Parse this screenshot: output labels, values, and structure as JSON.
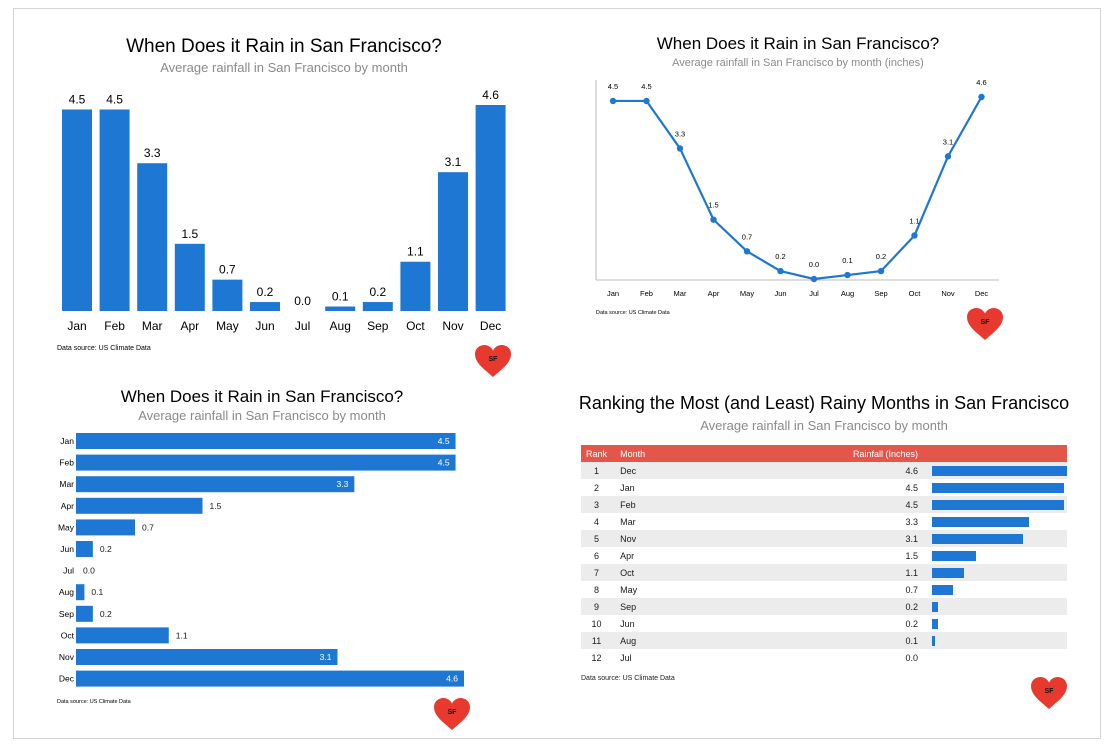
{
  "colors": {
    "bar": "#1f77d4",
    "header": "#e5564a",
    "heart": "#e8392e",
    "subtitle": "#8a8a8a"
  },
  "panels": {
    "p1": {
      "title": "When Does it Rain in San Francisco?",
      "subtitle": "Average rainfall in San Francisco by month",
      "source": "Data source: US Climate Data"
    },
    "p2": {
      "title": "When Does it Rain in San Francisco?",
      "subtitle": "Average rainfall in San Francisco by month (inches)",
      "source": "Data source: US Climate Data"
    },
    "p3": {
      "title": "When Does it Rain in San Francisco?",
      "subtitle": "Average rainfall in San Francisco by month",
      "source": "Data source: US Climate Data"
    },
    "p4": {
      "title": "Ranking the Most (and Least) Rainy Months in San Francisco",
      "subtitle": "Average rainfall in San Francisco by month",
      "headers": {
        "rank": "Rank",
        "month": "Month",
        "value": "Rainfall (Inches)"
      },
      "source": "Data source: US Climate Data"
    }
  },
  "logo": {
    "text": "SF",
    "icon": "heart-icon"
  },
  "chart_data": [
    {
      "type": "bar",
      "categories": [
        "Jan",
        "Feb",
        "Mar",
        "Apr",
        "May",
        "Jun",
        "Jul",
        "Aug",
        "Sep",
        "Oct",
        "Nov",
        "Dec"
      ],
      "values": [
        4.5,
        4.5,
        3.3,
        1.5,
        0.7,
        0.2,
        0.0,
        0.1,
        0.2,
        1.1,
        3.1,
        4.6
      ],
      "labels": [
        "4.5",
        "4.5",
        "3.3",
        "1.5",
        "0.7",
        "0.2",
        "0.0",
        "0.1",
        "0.2",
        "1.1",
        "3.1",
        "4.6"
      ],
      "title": "When Does it Rain in San Francisco?",
      "subtitle": "Average rainfall in San Francisco by month",
      "ylim": [
        0,
        4.6
      ],
      "grid": false
    },
    {
      "type": "line",
      "categories": [
        "Jan",
        "Feb",
        "Mar",
        "Apr",
        "May",
        "Jun",
        "Jul",
        "Aug",
        "Sep",
        "Oct",
        "Nov",
        "Dec"
      ],
      "values": [
        4.5,
        4.5,
        3.3,
        1.5,
        0.7,
        0.2,
        0.0,
        0.1,
        0.2,
        1.1,
        3.1,
        4.6
      ],
      "labels": [
        "4.5",
        "4.5",
        "3.3",
        "1.5",
        "0.7",
        "0.2",
        "0.0",
        "0.1",
        "0.2",
        "1.1",
        "3.1",
        "4.6"
      ],
      "title": "When Does it Rain in San Francisco?",
      "subtitle": "Average rainfall in San Francisco by month (inches)",
      "ylim": [
        0,
        4.6
      ],
      "grid": false
    },
    {
      "type": "bar",
      "orientation": "horizontal",
      "categories": [
        "Jan",
        "Feb",
        "Mar",
        "Apr",
        "May",
        "Jun",
        "Jul",
        "Aug",
        "Sep",
        "Oct",
        "Nov",
        "Dec"
      ],
      "values": [
        4.5,
        4.5,
        3.3,
        1.5,
        0.7,
        0.2,
        0.0,
        0.1,
        0.2,
        1.1,
        3.1,
        4.6
      ],
      "labels": [
        "4.5",
        "4.5",
        "3.3",
        "1.5",
        "0.7",
        "0.2",
        "0.0",
        "0.1",
        "0.2",
        "1.1",
        "3.1",
        "4.6"
      ],
      "title": "When Does it Rain in San Francisco?",
      "subtitle": "Average rainfall in San Francisco by month",
      "xlim": [
        0,
        4.6
      ],
      "grid": false
    },
    {
      "type": "table",
      "title": "Ranking the Most (and Least) Rainy Months in San Francisco",
      "subtitle": "Average rainfall in San Francisco by month",
      "columns": [
        "Rank",
        "Month",
        "Rainfall (Inches)"
      ],
      "rows": [
        {
          "rank": "1",
          "month": "Dec",
          "value": 4.6,
          "label": "4.6"
        },
        {
          "rank": "2",
          "month": "Jan",
          "value": 4.5,
          "label": "4.5"
        },
        {
          "rank": "3",
          "month": "Feb",
          "value": 4.5,
          "label": "4.5"
        },
        {
          "rank": "4",
          "month": "Mar",
          "value": 3.3,
          "label": "3.3"
        },
        {
          "rank": "5",
          "month": "Nov",
          "value": 3.1,
          "label": "3.1"
        },
        {
          "rank": "6",
          "month": "Apr",
          "value": 1.5,
          "label": "1.5"
        },
        {
          "rank": "7",
          "month": "Oct",
          "value": 1.1,
          "label": "1.1"
        },
        {
          "rank": "8",
          "month": "May",
          "value": 0.7,
          "label": "0.7"
        },
        {
          "rank": "9",
          "month": "Sep",
          "value": 0.2,
          "label": "0.2"
        },
        {
          "rank": "10",
          "month": "Jun",
          "value": 0.2,
          "label": "0.2"
        },
        {
          "rank": "11",
          "month": "Aug",
          "value": 0.1,
          "label": "0.1"
        },
        {
          "rank": "12",
          "month": "Jul",
          "value": 0.0,
          "label": "0.0"
        }
      ]
    }
  ]
}
